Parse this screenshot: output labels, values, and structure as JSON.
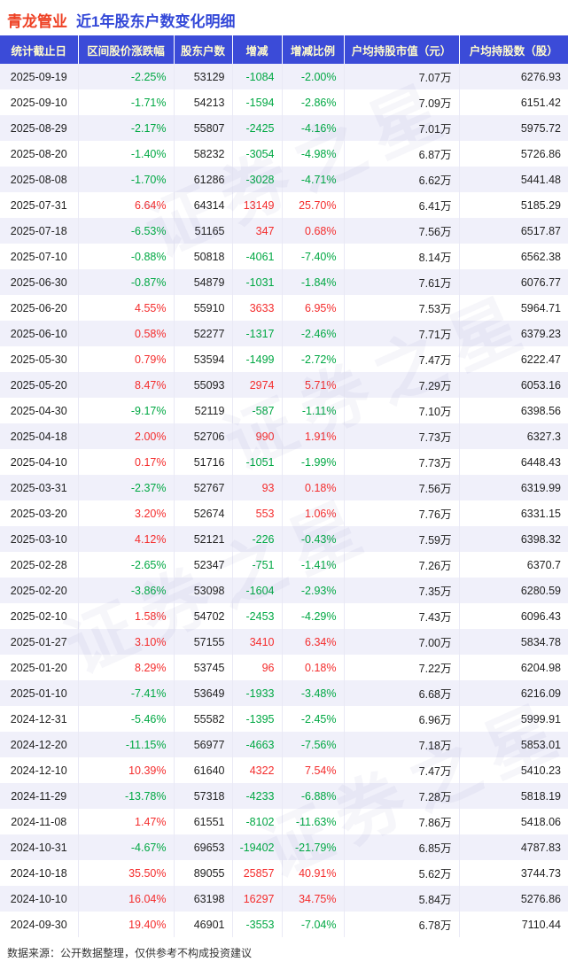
{
  "title": {
    "stock": "青龙管业",
    "subtitle": "近1年股东户数变化明细"
  },
  "chart_data": {
    "type": "table",
    "title": "青龙管业 近1年股东户数变化明细",
    "columns": [
      "统计截止日",
      "区间股价涨跌幅",
      "股东户数",
      "增减",
      "增减比例",
      "户均持股市值（元）",
      "户均持股数（股）"
    ],
    "column_meta": [
      {
        "name": "date",
        "align": "center",
        "type": "plain"
      },
      {
        "name": "change-pct",
        "align": "right",
        "type": "signed"
      },
      {
        "name": "holders",
        "align": "right",
        "type": "plain"
      },
      {
        "name": "delta",
        "align": "right",
        "type": "signed"
      },
      {
        "name": "delta-pct",
        "align": "right",
        "type": "signed"
      },
      {
        "name": "avg-holding-value",
        "align": "right",
        "type": "plain"
      },
      {
        "name": "avg-shares",
        "align": "right",
        "type": "plain"
      }
    ],
    "rows": [
      [
        "2025-09-19",
        "-2.25%",
        "53129",
        "-1084",
        "-2.00%",
        "7.07万",
        "6276.93"
      ],
      [
        "2025-09-10",
        "-1.71%",
        "54213",
        "-1594",
        "-2.86%",
        "7.09万",
        "6151.42"
      ],
      [
        "2025-08-29",
        "-2.17%",
        "55807",
        "-2425",
        "-4.16%",
        "7.01万",
        "5975.72"
      ],
      [
        "2025-08-20",
        "-1.40%",
        "58232",
        "-3054",
        "-4.98%",
        "6.87万",
        "5726.86"
      ],
      [
        "2025-08-08",
        "-1.70%",
        "61286",
        "-3028",
        "-4.71%",
        "6.62万",
        "5441.48"
      ],
      [
        "2025-07-31",
        "6.64%",
        "64314",
        "13149",
        "25.70%",
        "6.41万",
        "5185.29"
      ],
      [
        "2025-07-18",
        "-6.53%",
        "51165",
        "347",
        "0.68%",
        "7.56万",
        "6517.87"
      ],
      [
        "2025-07-10",
        "-0.88%",
        "50818",
        "-4061",
        "-7.40%",
        "8.14万",
        "6562.38"
      ],
      [
        "2025-06-30",
        "-0.87%",
        "54879",
        "-1031",
        "-1.84%",
        "7.61万",
        "6076.77"
      ],
      [
        "2025-06-20",
        "4.55%",
        "55910",
        "3633",
        "6.95%",
        "7.53万",
        "5964.71"
      ],
      [
        "2025-06-10",
        "0.58%",
        "52277",
        "-1317",
        "-2.46%",
        "7.71万",
        "6379.23"
      ],
      [
        "2025-05-30",
        "0.79%",
        "53594",
        "-1499",
        "-2.72%",
        "7.47万",
        "6222.47"
      ],
      [
        "2025-05-20",
        "8.47%",
        "55093",
        "2974",
        "5.71%",
        "7.29万",
        "6053.16"
      ],
      [
        "2025-04-30",
        "-9.17%",
        "52119",
        "-587",
        "-1.11%",
        "7.10万",
        "6398.56"
      ],
      [
        "2025-04-18",
        "2.00%",
        "52706",
        "990",
        "1.91%",
        "7.73万",
        "6327.3"
      ],
      [
        "2025-04-10",
        "0.17%",
        "51716",
        "-1051",
        "-1.99%",
        "7.73万",
        "6448.43"
      ],
      [
        "2025-03-31",
        "-2.37%",
        "52767",
        "93",
        "0.18%",
        "7.56万",
        "6319.99"
      ],
      [
        "2025-03-20",
        "3.20%",
        "52674",
        "553",
        "1.06%",
        "7.76万",
        "6331.15"
      ],
      [
        "2025-03-10",
        "4.12%",
        "52121",
        "-226",
        "-0.43%",
        "7.59万",
        "6398.32"
      ],
      [
        "2025-02-28",
        "-2.65%",
        "52347",
        "-751",
        "-1.41%",
        "7.26万",
        "6370.7"
      ],
      [
        "2025-02-20",
        "-3.86%",
        "53098",
        "-1604",
        "-2.93%",
        "7.35万",
        "6280.59"
      ],
      [
        "2025-02-10",
        "1.58%",
        "54702",
        "-2453",
        "-4.29%",
        "7.43万",
        "6096.43"
      ],
      [
        "2025-01-27",
        "3.10%",
        "57155",
        "3410",
        "6.34%",
        "7.00万",
        "5834.78"
      ],
      [
        "2025-01-20",
        "8.29%",
        "53745",
        "96",
        "0.18%",
        "7.22万",
        "6204.98"
      ],
      [
        "2025-01-10",
        "-7.41%",
        "53649",
        "-1933",
        "-3.48%",
        "6.68万",
        "6216.09"
      ],
      [
        "2024-12-31",
        "-5.46%",
        "55582",
        "-1395",
        "-2.45%",
        "6.96万",
        "5999.91"
      ],
      [
        "2024-12-20",
        "-11.15%",
        "56977",
        "-4663",
        "-7.56%",
        "7.18万",
        "5853.01"
      ],
      [
        "2024-12-10",
        "10.39%",
        "61640",
        "4322",
        "7.54%",
        "7.47万",
        "5410.23"
      ],
      [
        "2024-11-29",
        "-13.78%",
        "57318",
        "-4233",
        "-6.88%",
        "7.28万",
        "5818.19"
      ],
      [
        "2024-11-08",
        "1.47%",
        "61551",
        "-8102",
        "-11.63%",
        "7.86万",
        "5418.06"
      ],
      [
        "2024-10-31",
        "-4.67%",
        "69653",
        "-19402",
        "-21.79%",
        "6.85万",
        "4787.83"
      ],
      [
        "2024-10-18",
        "35.50%",
        "89055",
        "25857",
        "40.91%",
        "5.62万",
        "3744.73"
      ],
      [
        "2024-10-10",
        "16.04%",
        "63198",
        "16297",
        "34.75%",
        "5.84万",
        "5276.86"
      ],
      [
        "2024-09-30",
        "19.40%",
        "46901",
        "-3553",
        "-7.04%",
        "6.78万",
        "7110.44"
      ]
    ],
    "layout_hints": {
      "header_position": "top",
      "grid": "alternating-row-shading",
      "positive_color_meaning": "increase (red)",
      "negative_color_meaning": "decrease (green)"
    }
  },
  "footer": {
    "source_note": "数据来源：公开数据整理，仅供参考不构成投资建议"
  },
  "watermark": {
    "text": "证券之星"
  },
  "colors": {
    "positive": "#f42c2c",
    "negative": "#00a843",
    "header_bg": "#3b4bd8",
    "header_text": "#fffbcc",
    "row_alt_bg": "#f0f0fa",
    "title_stock": "#ee4023",
    "title_subtitle": "#3348d8"
  }
}
